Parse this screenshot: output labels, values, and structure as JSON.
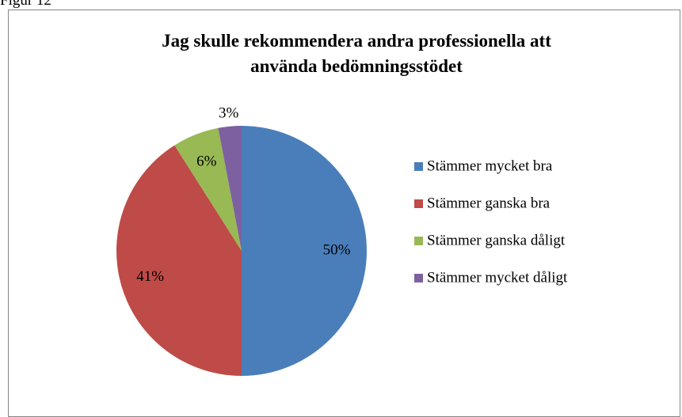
{
  "figure_label": "Figur 12",
  "chart_data": {
    "type": "pie",
    "title": "Jag skulle rekommendera andra professionella att använda bedömningsstödet",
    "categories": [
      "Stämmer mycket bra",
      "Stämmer ganska bra",
      "Stämmer ganska dåligt",
      "Stämmer mycket dåligt"
    ],
    "values": [
      50,
      41,
      6,
      3
    ],
    "value_labels": [
      "50%",
      "41%",
      "6%",
      "3%"
    ],
    "colors": [
      "#4a7ebb",
      "#be4b48",
      "#98b954",
      "#7d60a0"
    ],
    "legend": "right"
  }
}
